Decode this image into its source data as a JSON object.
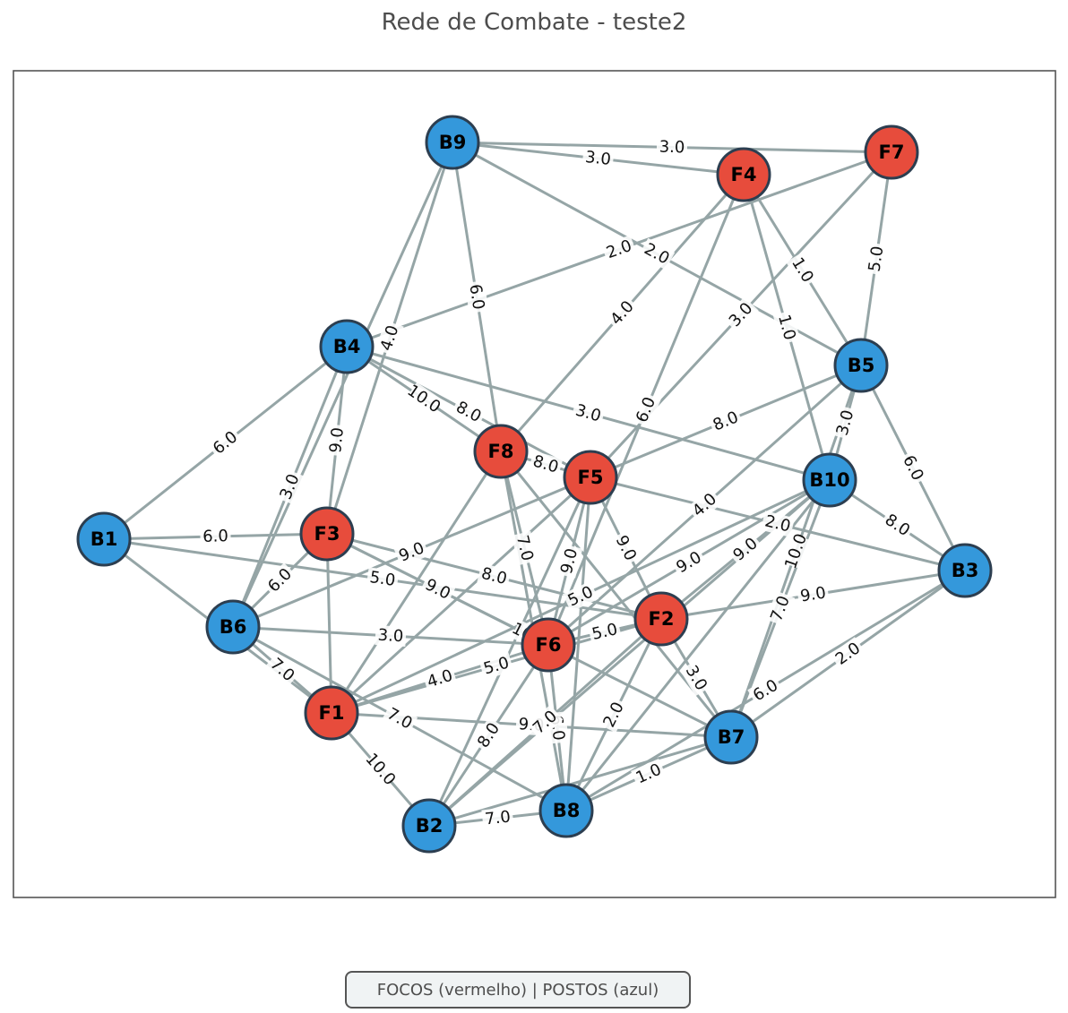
{
  "title": "Rede de Combate - teste2",
  "legend": "FOCOS (vermelho) | POSTOS (azul)",
  "colors": {
    "foco": "#e74c3c",
    "posto": "#3498db",
    "edge": "#95a5a6",
    "node_border": "#2c3e50"
  },
  "nodes": [
    {
      "id": "B1",
      "type": "posto"
    },
    {
      "id": "B2",
      "type": "posto"
    },
    {
      "id": "B3",
      "type": "posto"
    },
    {
      "id": "B4",
      "type": "posto"
    },
    {
      "id": "B5",
      "type": "posto"
    },
    {
      "id": "B6",
      "type": "posto"
    },
    {
      "id": "B7",
      "type": "posto"
    },
    {
      "id": "B8",
      "type": "posto"
    },
    {
      "id": "B9",
      "type": "posto"
    },
    {
      "id": "B10",
      "type": "posto"
    },
    {
      "id": "F1",
      "type": "foco"
    },
    {
      "id": "F2",
      "type": "foco"
    },
    {
      "id": "F3",
      "type": "foco"
    },
    {
      "id": "F4",
      "type": "foco"
    },
    {
      "id": "F5",
      "type": "foco"
    },
    {
      "id": "F6",
      "type": "foco"
    },
    {
      "id": "F7",
      "type": "foco"
    },
    {
      "id": "F8",
      "type": "foco"
    }
  ],
  "edges": [
    {
      "from": "B9",
      "to": "F7",
      "weight": "3.0"
    },
    {
      "from": "B9",
      "to": "F4",
      "weight": "3.0"
    },
    {
      "from": "B9",
      "to": "B5",
      "weight": "2.0"
    },
    {
      "from": "B9",
      "to": "F8",
      "weight": "6.0"
    },
    {
      "from": "B9",
      "to": "F3",
      "weight": "4.0"
    },
    {
      "from": "B9",
      "to": "B6",
      "weight": ""
    },
    {
      "from": "F7",
      "to": "B4",
      "weight": "2.0"
    },
    {
      "from": "F7",
      "to": "B5",
      "weight": "5.0"
    },
    {
      "from": "F7",
      "to": "F5",
      "weight": "3.0"
    },
    {
      "from": "F4",
      "to": "B5",
      "weight": "1.0"
    },
    {
      "from": "F4",
      "to": "B10",
      "weight": "1.0"
    },
    {
      "from": "F4",
      "to": "F8",
      "weight": "4.0"
    },
    {
      "from": "F4",
      "to": "F6",
      "weight": "6.0"
    },
    {
      "from": "B5",
      "to": "B3",
      "weight": "6.0"
    },
    {
      "from": "B5",
      "to": "F5",
      "weight": "8.0"
    },
    {
      "from": "B5",
      "to": "B10",
      "weight": "3.0"
    },
    {
      "from": "B5",
      "to": "F6",
      "weight": "4.0"
    },
    {
      "from": "B5",
      "to": "B7",
      "weight": "10.0"
    },
    {
      "from": "B4",
      "to": "B1",
      "weight": "6.0"
    },
    {
      "from": "B4",
      "to": "F3",
      "weight": "9.0"
    },
    {
      "from": "B4",
      "to": "B6",
      "weight": "3.0"
    },
    {
      "from": "B4",
      "to": "F8",
      "weight": "10.0"
    },
    {
      "from": "B4",
      "to": "F5",
      "weight": "8.0"
    },
    {
      "from": "B4",
      "to": "B10",
      "weight": "3.0"
    },
    {
      "from": "F8",
      "to": "F5",
      "weight": "8.0"
    },
    {
      "from": "F8",
      "to": "F6",
      "weight": "7.0"
    },
    {
      "from": "F8",
      "to": "B7",
      "weight": ""
    },
    {
      "from": "F8",
      "to": "F1",
      "weight": ""
    },
    {
      "from": "F8",
      "to": "B8",
      "weight": ""
    },
    {
      "from": "F5",
      "to": "B3",
      "weight": "2.0"
    },
    {
      "from": "F5",
      "to": "F2",
      "weight": "9.0"
    },
    {
      "from": "F5",
      "to": "F6",
      "weight": "9.0"
    },
    {
      "from": "F5",
      "to": "B2",
      "weight": ""
    },
    {
      "from": "F5",
      "to": "B6",
      "weight": "9.0"
    },
    {
      "from": "F5",
      "to": "F1",
      "weight": ""
    },
    {
      "from": "F5",
      "to": "B8",
      "weight": ""
    },
    {
      "from": "B10",
      "to": "B3",
      "weight": "8.0"
    },
    {
      "from": "B10",
      "to": "F6",
      "weight": "9.0"
    },
    {
      "from": "B10",
      "to": "F1",
      "weight": "5.0"
    },
    {
      "from": "B10",
      "to": "B2",
      "weight": ""
    },
    {
      "from": "B10",
      "to": "B7",
      "weight": "7.0"
    },
    {
      "from": "B10",
      "to": "B8",
      "weight": ""
    },
    {
      "from": "B10",
      "to": "F2",
      "weight": "9.0"
    },
    {
      "from": "B3",
      "to": "F2",
      "weight": "9.0"
    },
    {
      "from": "B3",
      "to": "B7",
      "weight": "2.0"
    },
    {
      "from": "B3",
      "to": "B8",
      "weight": "6.0"
    },
    {
      "from": "B1",
      "to": "F3",
      "weight": "6.0"
    },
    {
      "from": "B1",
      "to": "F2",
      "weight": "5.0"
    },
    {
      "from": "B1",
      "to": "F1",
      "weight": ""
    },
    {
      "from": "F3",
      "to": "F2",
      "weight": "8.0"
    },
    {
      "from": "F3",
      "to": "F6",
      "weight": "9.0"
    },
    {
      "from": "F3",
      "to": "B6",
      "weight": "6.0"
    },
    {
      "from": "F3",
      "to": "F1",
      "weight": ""
    },
    {
      "from": "F3",
      "to": "B7",
      "weight": "10.0"
    },
    {
      "from": "B6",
      "to": "F1",
      "weight": "7.0"
    },
    {
      "from": "B6",
      "to": "F6",
      "weight": "3.0"
    },
    {
      "from": "B6",
      "to": "B8",
      "weight": "7.0"
    },
    {
      "from": "F1",
      "to": "F6",
      "weight": "4.0"
    },
    {
      "from": "F1",
      "to": "F2",
      "weight": "5.0"
    },
    {
      "from": "F1",
      "to": "B2",
      "weight": "10.0"
    },
    {
      "from": "F1",
      "to": "B7",
      "weight": "9.0"
    },
    {
      "from": "F6",
      "to": "F2",
      "weight": "5.0"
    },
    {
      "from": "F6",
      "to": "B2",
      "weight": "8.0"
    },
    {
      "from": "F6",
      "to": "B8",
      "weight": "6.0"
    },
    {
      "from": "F2",
      "to": "B7",
      "weight": "3.0"
    },
    {
      "from": "F2",
      "to": "B2",
      "weight": "7.0"
    },
    {
      "from": "F2",
      "to": "B8",
      "weight": "2.0"
    },
    {
      "from": "B7",
      "to": "B2",
      "weight": ""
    },
    {
      "from": "B7",
      "to": "B8",
      "weight": "1.0"
    },
    {
      "from": "B2",
      "to": "B8",
      "weight": "7.0"
    }
  ]
}
